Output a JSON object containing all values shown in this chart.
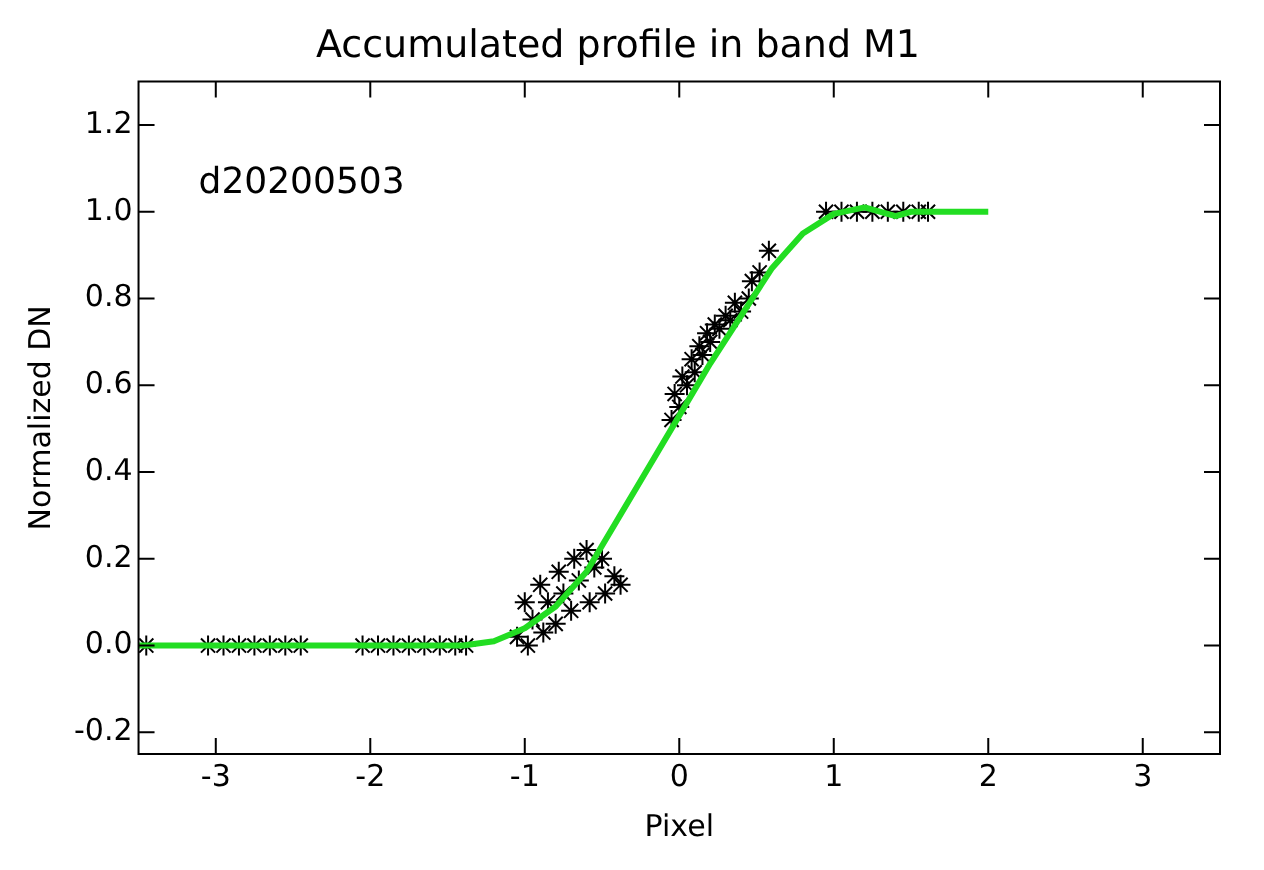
{
  "chart_data": {
    "type": "scatter",
    "title": "Accumulated profile in band M1",
    "xlabel": "Pixel",
    "ylabel": "Normalized DN",
    "annotations": [
      "d20200503"
    ],
    "xlim": [
      -3.5,
      3.5
    ],
    "xticks": [
      -3,
      -2,
      -1,
      0,
      1,
      2,
      3
    ],
    "ylim": [
      -0.25,
      1.3
    ],
    "yticks": [
      {
        "value": -0.2,
        "label": "-0.2"
      },
      {
        "value": 0,
        "label": "0.0"
      },
      {
        "value": 0.2,
        "label": "0.2"
      },
      {
        "value": 0.4,
        "label": "0.4"
      },
      {
        "value": 0.6,
        "label": "0.6"
      },
      {
        "value": 0.8,
        "label": "0.8"
      },
      {
        "value": 1,
        "label": "1.0"
      },
      {
        "value": 1.2,
        "label": "1.2"
      }
    ],
    "grid": false,
    "legend": false,
    "series": [
      {
        "type": "scatter",
        "color": "#000000",
        "marker": "cross",
        "x": [
          -3.45,
          -3.05,
          -2.95,
          -2.85,
          -2.75,
          -2.65,
          -2.55,
          -2.45,
          -2.05,
          -1.95,
          -1.85,
          -1.75,
          -1.65,
          -1.55,
          -1.45,
          -1.38,
          -1.05,
          -1.0,
          -0.98,
          -0.95,
          -0.9,
          -0.88,
          -0.85,
          -0.8,
          -0.78,
          -0.75,
          -0.7,
          -0.68,
          -0.65,
          -0.6,
          -0.58,
          -0.55,
          -0.5,
          -0.48,
          -0.42,
          -0.38,
          -0.05,
          -0.03,
          0.0,
          0.02,
          0.05,
          0.08,
          0.1,
          0.13,
          0.15,
          0.18,
          0.2,
          0.23,
          0.26,
          0.3,
          0.33,
          0.36,
          0.4,
          0.45,
          0.47,
          0.52,
          0.58,
          0.95,
          1.05,
          1.15,
          1.25,
          1.35,
          1.45,
          1.55,
          1.61
        ],
        "values": [
          0,
          0,
          0,
          0,
          0,
          0,
          0,
          0,
          0,
          0,
          0,
          0,
          0,
          0,
          0,
          0,
          0.02,
          0.1,
          0.0,
          0.06,
          0.14,
          0.03,
          0.1,
          0.05,
          0.17,
          0.12,
          0.08,
          0.2,
          0.15,
          0.22,
          0.1,
          0.18,
          0.2,
          0.12,
          0.16,
          0.14,
          0.52,
          0.58,
          0.55,
          0.62,
          0.6,
          0.66,
          0.63,
          0.69,
          0.67,
          0.72,
          0.7,
          0.74,
          0.73,
          0.76,
          0.75,
          0.79,
          0.77,
          0.8,
          0.84,
          0.86,
          0.91,
          1.0,
          1.0,
          1.0,
          1.0,
          1.0,
          1.0,
          1.0,
          1.0
        ]
      },
      {
        "type": "line",
        "color": "#22dd22",
        "marker": "none",
        "line_style": "solid",
        "x": [
          -3.5,
          -2.5,
          -1.4,
          -1.2,
          -1.0,
          -0.8,
          -0.6,
          -0.4,
          -0.2,
          0.0,
          0.2,
          0.4,
          0.6,
          0.8,
          1.0,
          1.2,
          1.4,
          1.5,
          2.0
        ],
        "values": [
          0,
          0,
          0,
          0.01,
          0.04,
          0.09,
          0.17,
          0.29,
          0.41,
          0.53,
          0.65,
          0.76,
          0.87,
          0.95,
          0.995,
          1.01,
          0.99,
          1.0,
          1.0
        ]
      }
    ]
  }
}
